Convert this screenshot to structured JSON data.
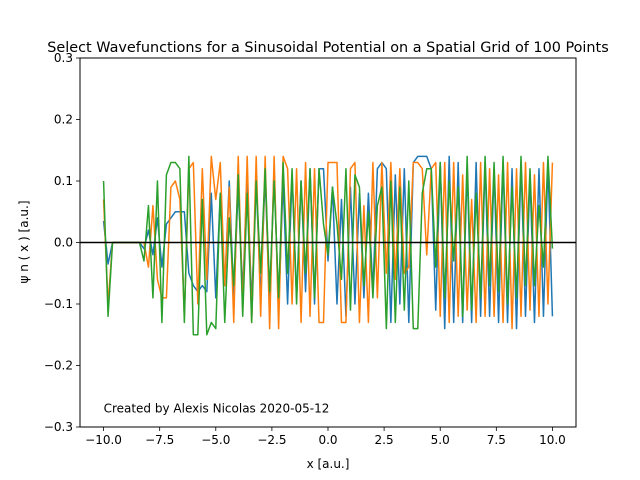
{
  "chart_data": {
    "type": "line",
    "title": "Select Wavefunctions for a Sinusoidal Potential on a Spatial Grid of 100 Points",
    "xlabel": "x [a.u.]",
    "ylabel": "ψ n ( x ) [a.u.]",
    "xlim": [
      -11.05,
      11.05
    ],
    "ylim": [
      -0.3,
      0.3
    ],
    "xticks": [
      -10.0,
      -7.5,
      -5.0,
      -2.5,
      0.0,
      2.5,
      5.0,
      7.5,
      10.0
    ],
    "xtick_labels": [
      "−10.0",
      "−7.5",
      "−5.0",
      "−2.5",
      "0.0",
      "2.5",
      "5.0",
      "7.5",
      "10.0"
    ],
    "yticks": [
      -0.3,
      -0.2,
      -0.1,
      0.0,
      0.1,
      0.2,
      0.3
    ],
    "ytick_labels": [
      "−0.3",
      "−0.2",
      "−0.1",
      "0.0",
      "0.1",
      "0.2",
      "0.3"
    ],
    "grid": false,
    "zero_line": {
      "y": 0.0,
      "color": "#000000"
    },
    "annotation": {
      "text": "Created by Alexis Nicolas 2020-05-12",
      "x": -10.0,
      "y": -0.27
    },
    "series": [
      {
        "color": "#1f77b4",
        "x": [
          -10.0,
          -9.8,
          -9.6,
          -9.4,
          -9.2,
          -9.0,
          -8.8,
          -8.6,
          -8.4,
          -8.2,
          -8.0,
          -7.8,
          -7.6,
          -7.4,
          -7.2,
          -7.0,
          -6.8,
          -6.6,
          -6.4,
          -6.2,
          -6.0,
          -5.8,
          -5.6,
          -5.4,
          -5.2,
          -5.0,
          -4.8,
          -4.6,
          -4.4,
          -4.2,
          -4.0,
          -3.8,
          -3.6,
          -3.4,
          -3.2,
          -3.0,
          -2.8,
          -2.6,
          -2.4,
          -2.2,
          -2.0,
          -1.8,
          -1.6,
          -1.4,
          -1.2,
          -1.0,
          -0.8,
          -0.6,
          -0.4,
          -0.2,
          0.0,
          0.2,
          0.4,
          0.6,
          0.8,
          1.0,
          1.2,
          1.4,
          1.6,
          1.8,
          2.0,
          2.2,
          2.4,
          2.6,
          2.8,
          3.0,
          3.2,
          3.4,
          3.6,
          3.8,
          4.0,
          4.2,
          4.4,
          4.6,
          4.8,
          5.0,
          5.2,
          5.4,
          5.6,
          5.8,
          6.0,
          6.2,
          6.4,
          6.6,
          6.8,
          7.0,
          7.2,
          7.4,
          7.6,
          7.8,
          8.0,
          8.2,
          8.4,
          8.6,
          8.8,
          9.0,
          9.2,
          9.4,
          9.6,
          9.8,
          10.0
        ],
        "y": [
          0.035,
          -0.035,
          0.0,
          0.0,
          0.0,
          0.0,
          0.0,
          0.0,
          0.0,
          -0.01,
          0.02,
          -0.02,
          0.04,
          -0.04,
          0.03,
          0.04,
          0.05,
          0.05,
          0.05,
          -0.05,
          -0.07,
          -0.08,
          -0.07,
          -0.08,
          0.08,
          -0.09,
          0.08,
          -0.07,
          0.1,
          -0.09,
          0.09,
          -0.08,
          0.11,
          -0.1,
          0.1,
          -0.09,
          0.11,
          -0.11,
          0.12,
          -0.11,
          0.1,
          -0.1,
          0.11,
          -0.09,
          0.1,
          -0.08,
          0.12,
          -0.1,
          0.12,
          0.12,
          -0.03,
          0.09,
          -0.1,
          0.07,
          -0.12,
          0.09,
          -0.1,
          0.08,
          -0.09,
          0.08,
          -0.08,
          0.12,
          0.13,
          0.12,
          -0.13,
          0.11,
          -0.1,
          0.12,
          -0.13,
          0.13,
          0.14,
          0.14,
          0.14,
          0.12,
          -0.11,
          0.13,
          -0.14,
          0.14,
          -0.13,
          0.13,
          -0.13,
          0.12,
          -0.13,
          0.13,
          -0.12,
          0.13,
          -0.12,
          0.12,
          -0.13,
          0.13,
          -0.13,
          0.12,
          -0.14,
          0.13,
          -0.12,
          0.11,
          -0.13,
          0.12,
          -0.12,
          0.13,
          -0.12
        ]
      },
      {
        "color": "#ff7f0e",
        "x": [
          -10.0,
          -9.8,
          -9.6,
          -9.4,
          -9.2,
          -9.0,
          -8.8,
          -8.6,
          -8.4,
          -8.2,
          -8.0,
          -7.8,
          -7.6,
          -7.4,
          -7.2,
          -7.0,
          -6.8,
          -6.6,
          -6.4,
          -6.2,
          -6.0,
          -5.8,
          -5.6,
          -5.4,
          -5.2,
          -5.0,
          -4.8,
          -4.6,
          -4.4,
          -4.2,
          -4.0,
          -3.8,
          -3.6,
          -3.4,
          -3.2,
          -3.0,
          -2.8,
          -2.6,
          -2.4,
          -2.2,
          -2.0,
          -1.8,
          -1.6,
          -1.4,
          -1.2,
          -1.0,
          -0.8,
          -0.6,
          -0.4,
          -0.2,
          0.0,
          0.2,
          0.4,
          0.6,
          0.8,
          1.0,
          1.2,
          1.4,
          1.6,
          1.8,
          2.0,
          2.2,
          2.4,
          2.6,
          2.8,
          3.0,
          3.2,
          3.4,
          3.6,
          3.8,
          4.0,
          4.2,
          4.4,
          4.6,
          4.8,
          5.0,
          5.2,
          5.4,
          5.6,
          5.8,
          6.0,
          6.2,
          6.4,
          6.6,
          6.8,
          7.0,
          7.2,
          7.4,
          7.6,
          7.8,
          8.0,
          8.2,
          8.4,
          8.6,
          8.8,
          9.0,
          9.2,
          9.4,
          9.6,
          9.8,
          10.0
        ],
        "y": [
          0.07,
          -0.1,
          0.0,
          0.0,
          0.0,
          0.0,
          0.0,
          0.0,
          0.0,
          0.0,
          -0.04,
          0.06,
          -0.06,
          -0.09,
          -0.09,
          0.09,
          0.1,
          0.07,
          -0.12,
          0.12,
          0.13,
          -0.1,
          0.12,
          -0.06,
          0.14,
          0.07,
          0.13,
          -0.07,
          0.09,
          -0.13,
          0.14,
          -0.11,
          0.14,
          -0.13,
          0.14,
          -0.12,
          0.14,
          -0.14,
          0.14,
          -0.14,
          0.14,
          0.12,
          -0.1,
          0.12,
          -0.13,
          0.13,
          -0.12,
          0.12,
          -0.13,
          -0.13,
          0.13,
          0.13,
          0.13,
          -0.13,
          -0.13,
          0.12,
          0.13,
          -0.13,
          0.06,
          -0.13,
          0.13,
          -0.09,
          0.13,
          -0.05,
          0.13,
          -0.06,
          0.12,
          -0.05,
          -0.04,
          0.13,
          0.13,
          0.12,
          -0.02,
          0.12,
          0.13,
          -0.12,
          0.13,
          -0.13,
          0.13,
          -0.12,
          0.11,
          -0.11,
          0.07,
          -0.13,
          0.13,
          -0.12,
          0.12,
          -0.12,
          0.11,
          -0.13,
          0.13,
          -0.14,
          0.12,
          -0.12,
          0.13,
          -0.11,
          0.11,
          -0.12,
          0.13,
          -0.1,
          0.13
        ]
      },
      {
        "color": "#2ca02c",
        "x": [
          -10.0,
          -9.8,
          -9.6,
          -9.4,
          -9.2,
          -9.0,
          -8.8,
          -8.6,
          -8.4,
          -8.2,
          -8.0,
          -7.8,
          -7.6,
          -7.4,
          -7.2,
          -7.0,
          -6.8,
          -6.6,
          -6.4,
          -6.2,
          -6.0,
          -5.8,
          -5.6,
          -5.4,
          -5.2,
          -5.0,
          -4.8,
          -4.6,
          -4.4,
          -4.2,
          -4.0,
          -3.8,
          -3.6,
          -3.4,
          -3.2,
          -3.0,
          -2.8,
          -2.6,
          -2.4,
          -2.2,
          -2.0,
          -1.8,
          -1.6,
          -1.4,
          -1.2,
          -1.0,
          -0.8,
          -0.6,
          -0.4,
          -0.2,
          0.0,
          0.2,
          0.4,
          0.6,
          0.8,
          1.0,
          1.2,
          1.4,
          1.6,
          1.8,
          2.0,
          2.2,
          2.4,
          2.6,
          2.8,
          3.0,
          3.2,
          3.4,
          3.6,
          3.8,
          4.0,
          4.2,
          4.4,
          4.6,
          4.8,
          5.0,
          5.2,
          5.4,
          5.6,
          5.8,
          6.0,
          6.2,
          6.4,
          6.6,
          6.8,
          7.0,
          7.2,
          7.4,
          7.6,
          7.8,
          8.0,
          8.2,
          8.4,
          8.6,
          8.8,
          9.0,
          9.2,
          9.4,
          9.6,
          9.8,
          10.0
        ],
        "y": [
          0.1,
          -0.12,
          0.0,
          0.0,
          0.0,
          0.0,
          0.0,
          0.0,
          0.0,
          -0.03,
          0.06,
          -0.09,
          0.1,
          -0.13,
          0.11,
          0.13,
          0.13,
          0.12,
          -0.13,
          0.14,
          -0.15,
          -0.15,
          0.07,
          -0.15,
          -0.13,
          -0.14,
          0.08,
          -0.13,
          0.04,
          -0.07,
          0.11,
          -0.12,
          0.08,
          -0.13,
          0.1,
          -0.05,
          0.12,
          -0.08,
          0.1,
          -0.09,
          0.13,
          -0.05,
          0.12,
          -0.1,
          0.1,
          -0.05,
          0.12,
          -0.09,
          0.12,
          0.03,
          -0.02,
          0.09,
          0.03,
          -0.06,
          0.12,
          -0.11,
          0.11,
          0.09,
          -0.07,
          0.05,
          -0.09,
          0.06,
          0.09,
          -0.14,
          0.1,
          -0.13,
          0.09,
          -0.11,
          0.1,
          -0.14,
          -0.14,
          0.08,
          0.12,
          0.12,
          -0.04,
          0.13,
          -0.09,
          0.1,
          -0.03,
          0.09,
          -0.12,
          0.14,
          -0.11,
          0.08,
          -0.09,
          0.14,
          -0.07,
          0.13,
          -0.08,
          0.14,
          -0.1,
          0.09,
          -0.09,
          0.14,
          -0.07,
          0.12,
          -0.07,
          0.06,
          -0.04,
          0.14,
          -0.01
        ]
      }
    ]
  }
}
